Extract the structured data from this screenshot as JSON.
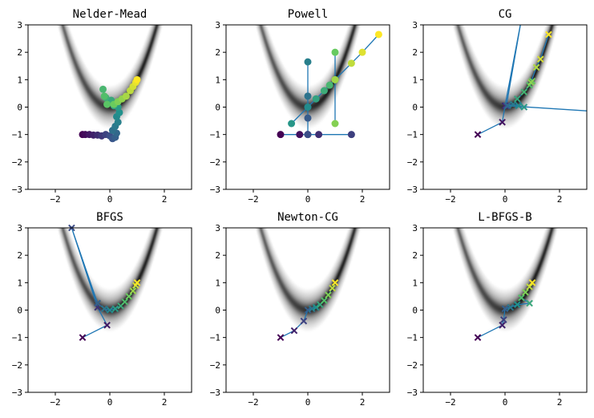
{
  "chart_data": [
    {
      "type": "scatter",
      "title": "Nelder-Mead",
      "xlim": [
        -3,
        3
      ],
      "ylim": [
        -3,
        3
      ],
      "xticks": [
        -2,
        0,
        2
      ],
      "yticks": [
        -3,
        -2,
        -1,
        0,
        1,
        2,
        3
      ],
      "background": "rosenbrock-grayscale",
      "path": [
        [
          -1.0,
          -1.0
        ],
        [
          -0.9,
          -1.0
        ],
        [
          -0.75,
          -1.0
        ],
        [
          -0.6,
          -1.02
        ],
        [
          -0.45,
          -1.02
        ],
        [
          -0.3,
          -1.05
        ],
        [
          -0.15,
          -1.0
        ],
        [
          0.0,
          -1.05
        ],
        [
          0.1,
          -1.15
        ],
        [
          0.2,
          -1.1
        ],
        [
          0.25,
          -0.95
        ],
        [
          0.1,
          -0.85
        ],
        [
          0.2,
          -0.7
        ],
        [
          0.3,
          -0.55
        ],
        [
          0.25,
          -0.35
        ],
        [
          0.35,
          -0.2
        ],
        [
          0.3,
          0.0
        ],
        [
          0.15,
          0.05
        ],
        [
          0.05,
          0.25
        ],
        [
          -0.15,
          0.35
        ],
        [
          -0.25,
          0.65
        ],
        [
          -0.2,
          0.4
        ],
        [
          -0.1,
          0.1
        ],
        [
          0.15,
          0.1
        ],
        [
          0.3,
          0.2
        ],
        [
          0.45,
          0.3
        ],
        [
          0.6,
          0.4
        ],
        [
          0.75,
          0.6
        ],
        [
          0.85,
          0.75
        ],
        [
          0.95,
          0.9
        ],
        [
          1.0,
          1.0
        ]
      ]
    },
    {
      "type": "scatter",
      "title": "Powell",
      "xlim": [
        -3,
        3
      ],
      "ylim": [
        -3,
        3
      ],
      "xticks": [
        -2,
        0,
        2
      ],
      "yticks": [
        -3,
        -2,
        -1,
        0,
        1,
        2,
        3
      ],
      "background": "rosenbrock-grayscale",
      "path": [
        [
          -1.0,
          -1.0
        ],
        [
          -0.3,
          -1.0
        ],
        [
          0.0,
          -1.0
        ],
        [
          0.4,
          -1.0
        ],
        [
          1.6,
          -1.0
        ],
        [
          0.0,
          -1.0
        ],
        [
          0.0,
          -0.4
        ],
        [
          0.0,
          0.0
        ],
        [
          0.0,
          0.4
        ],
        [
          0.0,
          1.65
        ],
        [
          0.0,
          0.0
        ],
        [
          -0.6,
          -0.6
        ],
        [
          0.3,
          0.3
        ],
        [
          0.6,
          0.6
        ],
        [
          0.8,
          0.8
        ],
        [
          1.0,
          1.0
        ],
        [
          1.0,
          2.0
        ],
        [
          1.0,
          -0.6
        ],
        [
          1.0,
          1.0
        ],
        [
          1.6,
          1.6
        ],
        [
          2.0,
          2.0
        ],
        [
          2.6,
          2.65
        ]
      ]
    },
    {
      "type": "scatter",
      "title": "CG",
      "xlim": [
        -3,
        3
      ],
      "ylim": [
        -3,
        3
      ],
      "xticks": [
        -2,
        0,
        2
      ],
      "yticks": [
        -3,
        -2,
        -1,
        0,
        1,
        2,
        3
      ],
      "background": "rosenbrock-grayscale",
      "path": [
        [
          -1.0,
          -1.0
        ],
        [
          -0.1,
          -0.55
        ],
        [
          0.0,
          0.05
        ],
        [
          0.6,
          3.2
        ],
        [
          0.05,
          0.05
        ],
        [
          3.2,
          -0.15
        ],
        [
          0.1,
          0.05
        ],
        [
          0.3,
          0.1
        ],
        [
          0.5,
          0.05
        ],
        [
          0.7,
          0.0
        ],
        [
          0.45,
          0.3
        ],
        [
          0.7,
          0.55
        ],
        [
          0.9,
          0.8
        ],
        [
          1.0,
          0.95
        ],
        [
          0.95,
          0.9
        ],
        [
          1.15,
          1.45
        ],
        [
          1.3,
          1.75
        ],
        [
          1.6,
          2.65
        ]
      ]
    },
    {
      "type": "scatter",
      "title": "BFGS",
      "xlim": [
        -3,
        3
      ],
      "ylim": [
        -3,
        3
      ],
      "xticks": [
        -2,
        0,
        2
      ],
      "yticks": [
        -3,
        -2,
        -1,
        0,
        1,
        2,
        3
      ],
      "background": "rosenbrock-grayscale",
      "path": [
        [
          -1.0,
          -1.0
        ],
        [
          -0.1,
          -0.55
        ],
        [
          -0.45,
          0.1
        ],
        [
          -1.4,
          3.0
        ],
        [
          -0.45,
          0.25
        ],
        [
          -0.2,
          0.05
        ],
        [
          0.0,
          0.0
        ],
        [
          0.2,
          0.05
        ],
        [
          0.4,
          0.15
        ],
        [
          0.55,
          0.3
        ],
        [
          0.7,
          0.5
        ],
        [
          0.85,
          0.7
        ],
        [
          0.95,
          0.9
        ],
        [
          1.0,
          1.0
        ]
      ]
    },
    {
      "type": "scatter",
      "title": "Newton-CG",
      "xlim": [
        -3,
        3
      ],
      "ylim": [
        -3,
        3
      ],
      "xticks": [
        -2,
        0,
        2
      ],
      "yticks": [
        -3,
        -2,
        -1,
        0,
        1,
        2,
        3
      ],
      "background": "rosenbrock-grayscale",
      "path": [
        [
          -1.0,
          -1.0
        ],
        [
          -0.5,
          -0.75
        ],
        [
          -0.15,
          -0.4
        ],
        [
          0.0,
          0.0
        ],
        [
          0.15,
          0.05
        ],
        [
          0.3,
          0.1
        ],
        [
          0.45,
          0.2
        ],
        [
          0.6,
          0.35
        ],
        [
          0.75,
          0.55
        ],
        [
          0.9,
          0.8
        ],
        [
          1.0,
          1.0
        ]
      ]
    },
    {
      "type": "scatter",
      "title": "L-BFGS-B",
      "xlim": [
        -3,
        3
      ],
      "ylim": [
        -3,
        3
      ],
      "xticks": [
        -2,
        0,
        2
      ],
      "yticks": [
        -3,
        -2,
        -1,
        0,
        1,
        2,
        3
      ],
      "background": "rosenbrock-grayscale",
      "path": [
        [
          -1.0,
          -1.0
        ],
        [
          -0.1,
          -0.55
        ],
        [
          -0.05,
          -0.35
        ],
        [
          0.0,
          0.05
        ],
        [
          0.2,
          0.1
        ],
        [
          0.45,
          0.2
        ],
        [
          0.9,
          0.25
        ],
        [
          0.6,
          0.45
        ],
        [
          0.75,
          0.65
        ],
        [
          0.9,
          0.85
        ],
        [
          1.0,
          1.0
        ]
      ]
    }
  ],
  "style": {
    "line_color": "#1f77b4",
    "marker_colormap": "viridis"
  }
}
